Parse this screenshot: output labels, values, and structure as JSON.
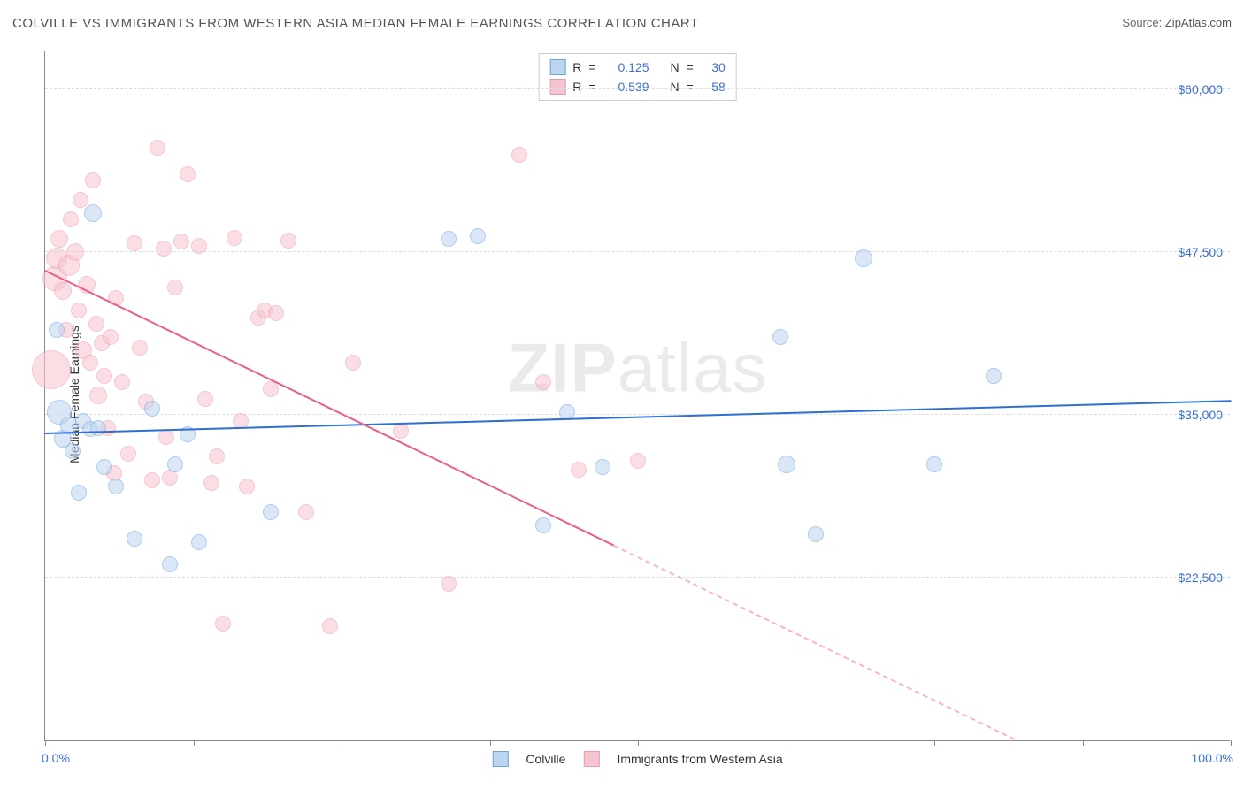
{
  "title": "COLVILLE VS IMMIGRANTS FROM WESTERN ASIA MEDIAN FEMALE EARNINGS CORRELATION CHART",
  "source_label": "Source:",
  "source_value": "ZipAtlas.com",
  "watermark_bold": "ZIP",
  "watermark_rest": "atlas",
  "ylabel": "Median Female Earnings",
  "chart": {
    "type": "scatter",
    "xlim": [
      0,
      100
    ],
    "ylim": [
      10000,
      63000
    ],
    "y_ticks": [
      22500,
      35000,
      47500,
      60000
    ],
    "y_tick_labels": [
      "$22,500",
      "$35,000",
      "$47,500",
      "$60,000"
    ],
    "x_ticks": [
      0,
      12.5,
      25,
      37.5,
      50,
      62.5,
      75,
      87.5,
      100
    ],
    "x_min_label": "0.0%",
    "x_max_label": "100.0%",
    "background_color": "#ffffff",
    "grid_color": "#dddddd",
    "axis_color": "#888888",
    "tick_label_color": "#3b6fd6",
    "series": [
      {
        "name": "Colville",
        "label": "Colville",
        "fill": "#bcd5f0",
        "stroke": "#6ea2e0",
        "fill_opacity": 0.55,
        "line_color": "#2f6fd0",
        "marker_r": 9,
        "R": "0.125",
        "N": "30",
        "trend": {
          "x1": 0,
          "y1": 33500,
          "x2": 100,
          "y2": 36000
        },
        "points": [
          {
            "x": 1.0,
            "y": 41500,
            "r": 9
          },
          {
            "x": 1.2,
            "y": 35200,
            "r": 14
          },
          {
            "x": 1.5,
            "y": 33200,
            "r": 10
          },
          {
            "x": 2.0,
            "y": 34200,
            "r": 10
          },
          {
            "x": 2.3,
            "y": 32200,
            "r": 9
          },
          {
            "x": 2.8,
            "y": 29000,
            "r": 9
          },
          {
            "x": 3.2,
            "y": 34500,
            "r": 9
          },
          {
            "x": 3.8,
            "y": 33900,
            "r": 9
          },
          {
            "x": 4.0,
            "y": 50500,
            "r": 10
          },
          {
            "x": 4.5,
            "y": 34000,
            "r": 9
          },
          {
            "x": 5.0,
            "y": 31000,
            "r": 9
          },
          {
            "x": 6.0,
            "y": 29500,
            "r": 9
          },
          {
            "x": 7.5,
            "y": 25500,
            "r": 9
          },
          {
            "x": 9.0,
            "y": 35500,
            "r": 9
          },
          {
            "x": 10.5,
            "y": 23500,
            "r": 9
          },
          {
            "x": 11.0,
            "y": 31200,
            "r": 9
          },
          {
            "x": 12.0,
            "y": 33500,
            "r": 9
          },
          {
            "x": 13.0,
            "y": 25200,
            "r": 9
          },
          {
            "x": 19.0,
            "y": 27500,
            "r": 9
          },
          {
            "x": 34.0,
            "y": 48500,
            "r": 9
          },
          {
            "x": 36.5,
            "y": 48700,
            "r": 9
          },
          {
            "x": 42.0,
            "y": 26500,
            "r": 9
          },
          {
            "x": 44.0,
            "y": 35200,
            "r": 9
          },
          {
            "x": 47.0,
            "y": 31000,
            "r": 9
          },
          {
            "x": 62.0,
            "y": 41000,
            "r": 9
          },
          {
            "x": 62.5,
            "y": 31200,
            "r": 10
          },
          {
            "x": 65.0,
            "y": 25800,
            "r": 9
          },
          {
            "x": 69.0,
            "y": 47000,
            "r": 10
          },
          {
            "x": 75.0,
            "y": 31200,
            "r": 9
          },
          {
            "x": 80.0,
            "y": 38000,
            "r": 9
          }
        ]
      },
      {
        "name": "Immigrants from Western Asia",
        "label": "Immigrants from Western Asia",
        "fill": "#f6c4cf",
        "stroke": "#ea9ab0",
        "fill_opacity": 0.55,
        "line_color": "#e95f8a",
        "marker_r": 9,
        "R": "-0.539",
        "N": "58",
        "trend": {
          "x1": 0,
          "y1": 46000,
          "x2": 100,
          "y2": 2000
        },
        "points": [
          {
            "x": 0.5,
            "y": 38500,
            "r": 22
          },
          {
            "x": 0.8,
            "y": 45500,
            "r": 14
          },
          {
            "x": 1.0,
            "y": 47000,
            "r": 12
          },
          {
            "x": 1.2,
            "y": 48500,
            "r": 10
          },
          {
            "x": 1.5,
            "y": 44500,
            "r": 10
          },
          {
            "x": 1.8,
            "y": 41500,
            "r": 9
          },
          {
            "x": 2.0,
            "y": 46500,
            "r": 12
          },
          {
            "x": 2.2,
            "y": 50000,
            "r": 9
          },
          {
            "x": 2.5,
            "y": 47500,
            "r": 10
          },
          {
            "x": 2.8,
            "y": 43000,
            "r": 9
          },
          {
            "x": 3.0,
            "y": 51500,
            "r": 9
          },
          {
            "x": 3.2,
            "y": 40000,
            "r": 10
          },
          {
            "x": 3.5,
            "y": 45000,
            "r": 10
          },
          {
            "x": 3.8,
            "y": 39000,
            "r": 9
          },
          {
            "x": 4.0,
            "y": 53000,
            "r": 9
          },
          {
            "x": 4.3,
            "y": 42000,
            "r": 9
          },
          {
            "x": 4.5,
            "y": 36500,
            "r": 10
          },
          {
            "x": 4.8,
            "y": 40500,
            "r": 9
          },
          {
            "x": 5.0,
            "y": 38000,
            "r": 9
          },
          {
            "x": 5.3,
            "y": 34000,
            "r": 9
          },
          {
            "x": 5.5,
            "y": 41000,
            "r": 9
          },
          {
            "x": 5.8,
            "y": 30500,
            "r": 9
          },
          {
            "x": 6.0,
            "y": 44000,
            "r": 9
          },
          {
            "x": 6.5,
            "y": 37500,
            "r": 9
          },
          {
            "x": 7.0,
            "y": 32000,
            "r": 9
          },
          {
            "x": 7.5,
            "y": 48200,
            "r": 9
          },
          {
            "x": 8.0,
            "y": 40200,
            "r": 9
          },
          {
            "x": 8.5,
            "y": 36000,
            "r": 9
          },
          {
            "x": 9.0,
            "y": 30000,
            "r": 9
          },
          {
            "x": 9.5,
            "y": 55500,
            "r": 9
          },
          {
            "x": 10.0,
            "y": 47800,
            "r": 9
          },
          {
            "x": 10.2,
            "y": 33300,
            "r": 9
          },
          {
            "x": 10.5,
            "y": 30200,
            "r": 9
          },
          {
            "x": 11.0,
            "y": 44800,
            "r": 9
          },
          {
            "x": 11.5,
            "y": 48300,
            "r": 9
          },
          {
            "x": 12.0,
            "y": 53500,
            "r": 9
          },
          {
            "x": 13.0,
            "y": 48000,
            "r": 9
          },
          {
            "x": 13.5,
            "y": 36200,
            "r": 9
          },
          {
            "x": 14.0,
            "y": 29800,
            "r": 9
          },
          {
            "x": 14.5,
            "y": 31800,
            "r": 9
          },
          {
            "x": 15.0,
            "y": 19000,
            "r": 9
          },
          {
            "x": 16.0,
            "y": 48600,
            "r": 9
          },
          {
            "x": 16.5,
            "y": 34500,
            "r": 9
          },
          {
            "x": 17.0,
            "y": 29500,
            "r": 9
          },
          {
            "x": 18.0,
            "y": 42500,
            "r": 9
          },
          {
            "x": 18.5,
            "y": 43000,
            "r": 9
          },
          {
            "x": 19.0,
            "y": 37000,
            "r": 9
          },
          {
            "x": 19.5,
            "y": 42800,
            "r": 9
          },
          {
            "x": 20.5,
            "y": 48400,
            "r": 9
          },
          {
            "x": 22.0,
            "y": 27500,
            "r": 9
          },
          {
            "x": 24.0,
            "y": 18800,
            "r": 9
          },
          {
            "x": 26.0,
            "y": 39000,
            "r": 9
          },
          {
            "x": 30.0,
            "y": 33800,
            "r": 9
          },
          {
            "x": 34.0,
            "y": 22000,
            "r": 9
          },
          {
            "x": 40.0,
            "y": 55000,
            "r": 9
          },
          {
            "x": 42.0,
            "y": 37500,
            "r": 9
          },
          {
            "x": 45.0,
            "y": 30800,
            "r": 9
          },
          {
            "x": 50.0,
            "y": 31500,
            "r": 9
          }
        ]
      }
    ]
  },
  "legend_labels": {
    "R": "R",
    "N": "N",
    "eq": "="
  }
}
